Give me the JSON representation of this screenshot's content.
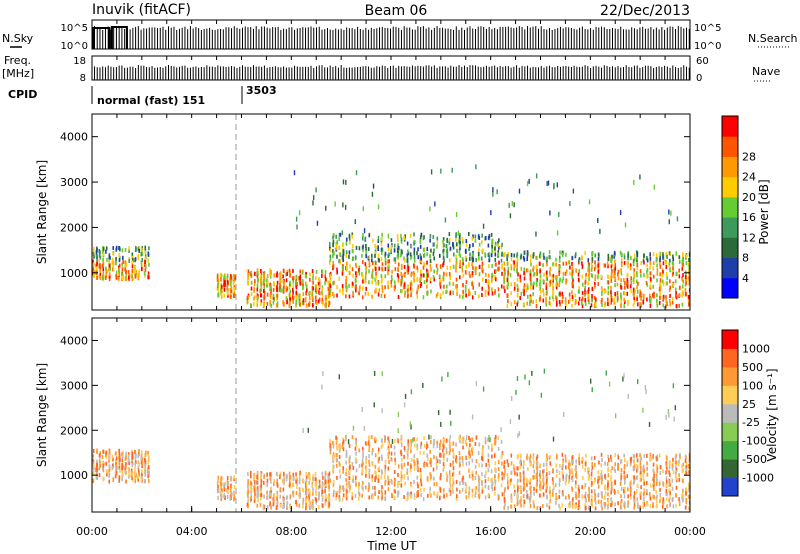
{
  "header": {
    "station": "Inuvik (fitACF)",
    "beam": "Beam 06",
    "date": "22/Dec/2013"
  },
  "left_labels": {
    "nsky": "N.Sky",
    "freq": "Freq.",
    "mhz": "[MHz]",
    "cpid": "CPID"
  },
  "right_labels": {
    "nsearch": "N.Search",
    "nave": "Nave"
  },
  "noise_ticks": {
    "top": "10^5",
    "bottom": "10^0",
    "right_top": "10^5",
    "right_bottom": "10^0"
  },
  "freq_ticks": {
    "top": "18",
    "bottom": "8"
  },
  "nave_ticks": {
    "top": "60",
    "bottom": "0"
  },
  "cpid": {
    "mode1": "normal (fast) 151",
    "mode2": "3503"
  },
  "colors": {
    "power": [
      "#0000ff",
      "#1f3fa8",
      "#2b6b3a",
      "#3c9a5a",
      "#66cc33",
      "#ffcc00",
      "#ff9900",
      "#ff5500",
      "#ff0000"
    ],
    "velocity": [
      "#2244cc",
      "#336633",
      "#44aa44",
      "#88cc55",
      "#bbbbbb",
      "#ffcc55",
      "#ff9933",
      "#ff6622",
      "#ff0000"
    ]
  },
  "chart_data": [
    {
      "type": "heatmap",
      "name": "power",
      "ylabel": "Slant Range [km]",
      "yticks": [
        1000,
        2000,
        3000,
        4000
      ],
      "ylim": [
        180,
        4500
      ],
      "xlim": [
        0,
        24
      ],
      "colorbar_label": "Power [dB]",
      "colorbar_ticks": [
        "4",
        "8",
        "12",
        "16",
        "20",
        "24",
        "28"
      ]
    },
    {
      "type": "heatmap",
      "name": "velocity",
      "ylabel": "Slant Range [km]",
      "yticks": [
        1000,
        2000,
        3000,
        4000
      ],
      "ylim": [
        180,
        4500
      ],
      "xlim": [
        0,
        24
      ],
      "colorbar_label": "Velocity [m s⁻¹]",
      "colorbar_ticks": [
        "-1000",
        "-500",
        "-100",
        "-25",
        "25",
        "100",
        "500",
        "1000"
      ]
    }
  ],
  "xaxis": {
    "label": "Time UT",
    "ticks": [
      "00:00",
      "04:00",
      "08:00",
      "12:00",
      "16:00",
      "20:00",
      "00:00"
    ]
  }
}
